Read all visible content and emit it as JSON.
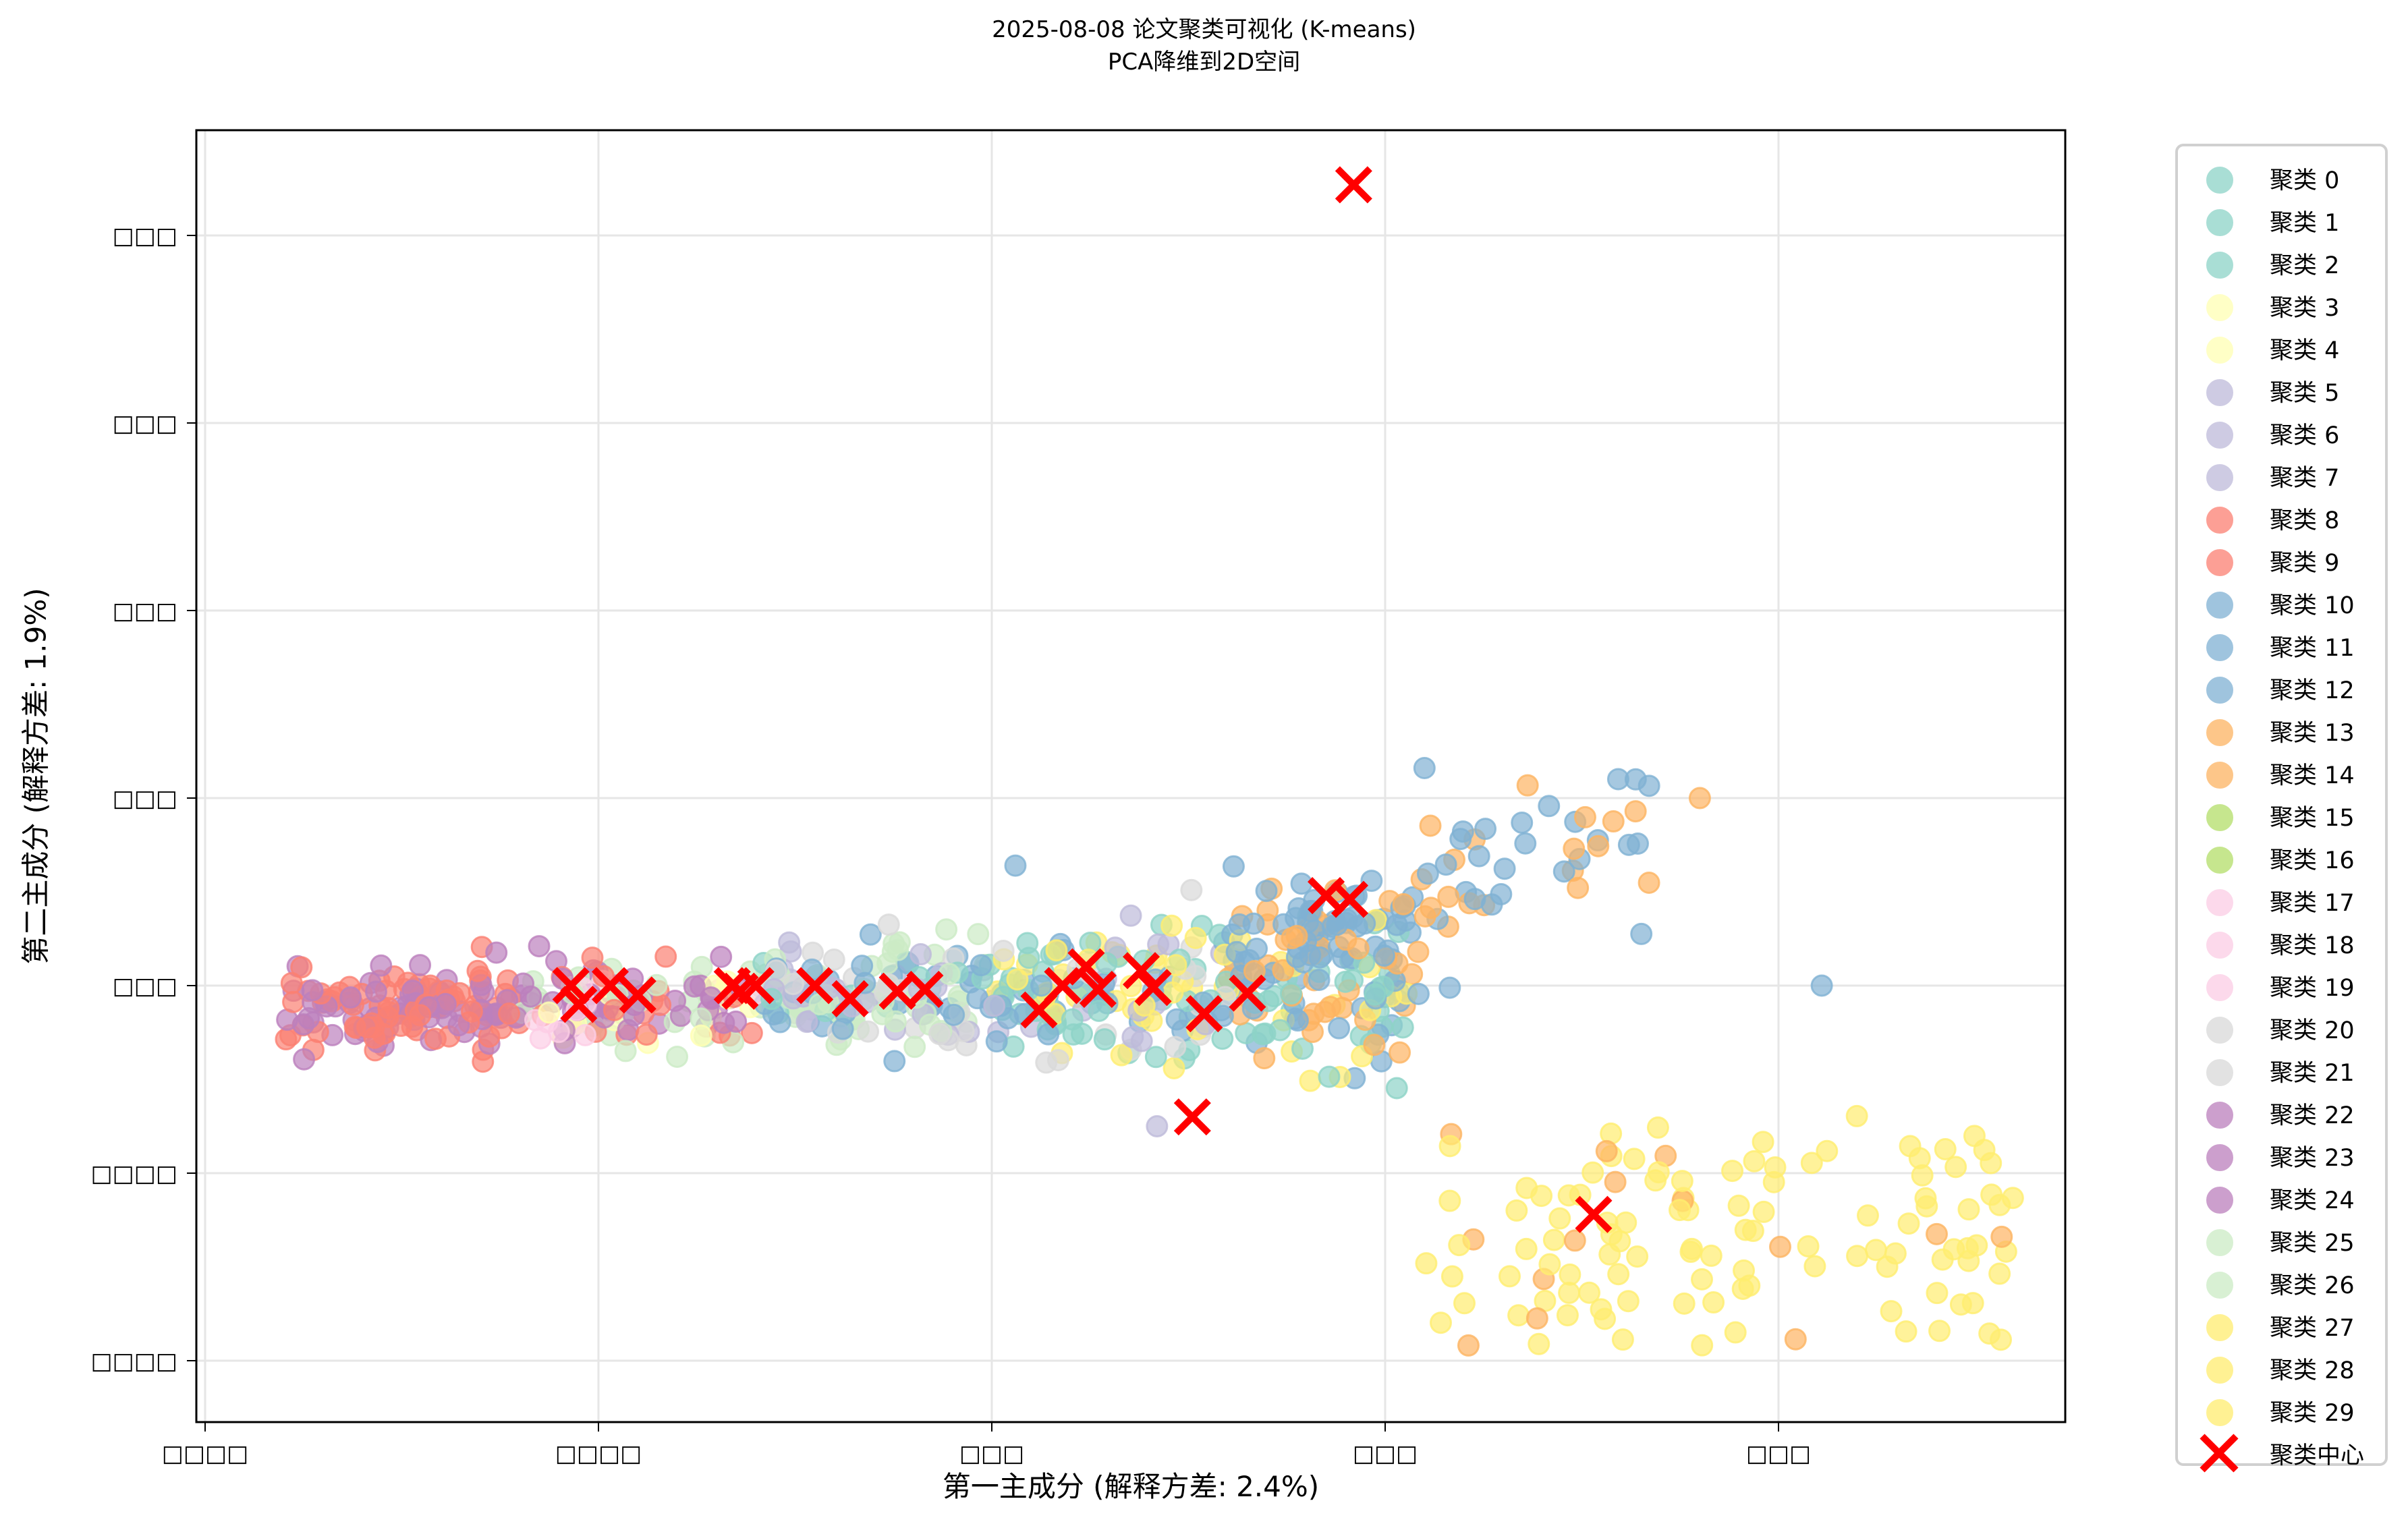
{
  "chart_data": {
    "type": "scatter",
    "title": "2025-08-08 论文聚类可视化 (K-means)",
    "subtitle": "PCA降维到2D空间",
    "xlabel": "第一主成分 (解释方差: 2.4%)",
    "ylabel": "第二主成分 (解释方差: 1.9%)",
    "xlim": [
      -0.202,
      0.272
    ],
    "ylim": [
      -0.234,
      0.458
    ],
    "x_ticks": [
      -0.2,
      -0.1,
      0.0,
      0.1,
      0.2
    ],
    "y_ticks": [
      -0.2,
      -0.1,
      0.0,
      0.1,
      0.2,
      0.3,
      0.4
    ],
    "x_tick_labels_rendered": [
      "□□□□",
      "□□□□",
      "□□□",
      "□□□",
      "□□□"
    ],
    "y_tick_labels_rendered": [
      "□□□",
      "□□□",
      "□□□",
      "□□□",
      "□□□",
      "□□□□",
      "□□□□"
    ],
    "grid": true,
    "legend_position": "outside right",
    "legend": [
      "聚类 0",
      "聚类 1",
      "聚类 2",
      "聚类 3",
      "聚类 4",
      "聚类 5",
      "聚类 6",
      "聚类 7",
      "聚类 8",
      "聚类 9",
      "聚类 10",
      "聚类 11",
      "聚类 12",
      "聚类 13",
      "聚类 14",
      "聚类 15",
      "聚类 16",
      "聚类 17",
      "聚类 18",
      "聚类 19",
      "聚类 20",
      "聚类 21",
      "聚类 22",
      "聚类 23",
      "聚类 24",
      "聚类 25",
      "聚类 26",
      "聚类 27",
      "聚类 28",
      "聚类 29",
      "聚类中心"
    ],
    "cluster_colors": [
      "#8dd3c7",
      "#8dd3c7",
      "#8dd3c7",
      "#ffffb3",
      "#ffffb3",
      "#bebada",
      "#bebada",
      "#bebada",
      "#fb8072",
      "#fb8072",
      "#80b1d3",
      "#80b1d3",
      "#80b1d3",
      "#fdb462",
      "#fdb462",
      "#b3de69",
      "#b3de69",
      "#fccde5",
      "#fccde5",
      "#fccde5",
      "#d9d9d9",
      "#d9d9d9",
      "#bc80bd",
      "#bc80bd",
      "#bc80bd",
      "#ccebc5",
      "#ccebc5",
      "#ffed6f",
      "#ffed6f",
      "#ffed6f"
    ],
    "centroid_color": "#ff0000",
    "centroids": [
      {
        "x": -0.107,
        "y": 0.0
      },
      {
        "x": -0.105,
        "y": -0.01
      },
      {
        "x": -0.097,
        "y": 0.0
      },
      {
        "x": -0.09,
        "y": -0.005
      },
      {
        "x": -0.066,
        "y": 0.0
      },
      {
        "x": -0.064,
        "y": -0.003
      },
      {
        "x": -0.06,
        "y": 0.0
      },
      {
        "x": -0.045,
        "y": 0.0
      },
      {
        "x": -0.036,
        "y": -0.007
      },
      {
        "x": -0.024,
        "y": -0.003
      },
      {
        "x": -0.017,
        "y": -0.002
      },
      {
        "x": 0.012,
        "y": -0.013
      },
      {
        "x": 0.018,
        "y": 0.0
      },
      {
        "x": 0.024,
        "y": 0.01
      },
      {
        "x": 0.027,
        "y": -0.002
      },
      {
        "x": 0.038,
        "y": 0.008
      },
      {
        "x": 0.041,
        "y": -0.001
      },
      {
        "x": 0.054,
        "y": -0.015
      },
      {
        "x": 0.065,
        "y": -0.004
      },
      {
        "x": 0.051,
        "y": -0.07
      },
      {
        "x": 0.085,
        "y": 0.048
      },
      {
        "x": 0.091,
        "y": 0.046
      },
      {
        "x": 0.153,
        "y": -0.122
      },
      {
        "x": 0.092,
        "y": 0.427
      }
    ],
    "series_note": "~1000 points in 30 clusters; main band along y≈0 from x≈-0.18 to 0.11; a blue/orange branch rising to y≈0.12 near x≈0.1–0.14; a yellow cluster (27–29) spread around x 0.12–0.25, y -0.05 to -0.2"
  },
  "legend": {
    "items": [
      {
        "label": "聚类 0",
        "color": "#8dd3c7"
      },
      {
        "label": "聚类 1",
        "color": "#8dd3c7"
      },
      {
        "label": "聚类 2",
        "color": "#8dd3c7"
      },
      {
        "label": "聚类 3",
        "color": "#ffffb3"
      },
      {
        "label": "聚类 4",
        "color": "#ffffb3"
      },
      {
        "label": "聚类 5",
        "color": "#bebada"
      },
      {
        "label": "聚类 6",
        "color": "#bebada"
      },
      {
        "label": "聚类 7",
        "color": "#bebada"
      },
      {
        "label": "聚类 8",
        "color": "#fb8072"
      },
      {
        "label": "聚类 9",
        "color": "#fb8072"
      },
      {
        "label": "聚类 10",
        "color": "#80b1d3"
      },
      {
        "label": "聚类 11",
        "color": "#80b1d3"
      },
      {
        "label": "聚类 12",
        "color": "#80b1d3"
      },
      {
        "label": "聚类 13",
        "color": "#fdb462"
      },
      {
        "label": "聚类 14",
        "color": "#fdb462"
      },
      {
        "label": "聚类 15",
        "color": "#b3de69"
      },
      {
        "label": "聚类 16",
        "color": "#b3de69"
      },
      {
        "label": "聚类 17",
        "color": "#fccde5"
      },
      {
        "label": "聚类 18",
        "color": "#fccde5"
      },
      {
        "label": "聚类 19",
        "color": "#fccde5"
      },
      {
        "label": "聚类 20",
        "color": "#d9d9d9"
      },
      {
        "label": "聚类 21",
        "color": "#d9d9d9"
      },
      {
        "label": "聚类 22",
        "color": "#bc80bd"
      },
      {
        "label": "聚类 23",
        "color": "#bc80bd"
      },
      {
        "label": "聚类 24",
        "color": "#bc80bd"
      },
      {
        "label": "聚类 25",
        "color": "#ccebc5"
      },
      {
        "label": "聚类 26",
        "color": "#ccebc5"
      },
      {
        "label": "聚类 27",
        "color": "#ffed6f"
      },
      {
        "label": "聚类 28",
        "color": "#ffed6f"
      },
      {
        "label": "聚类 29",
        "color": "#ffed6f"
      }
    ],
    "centroid_label": "聚类中心"
  }
}
